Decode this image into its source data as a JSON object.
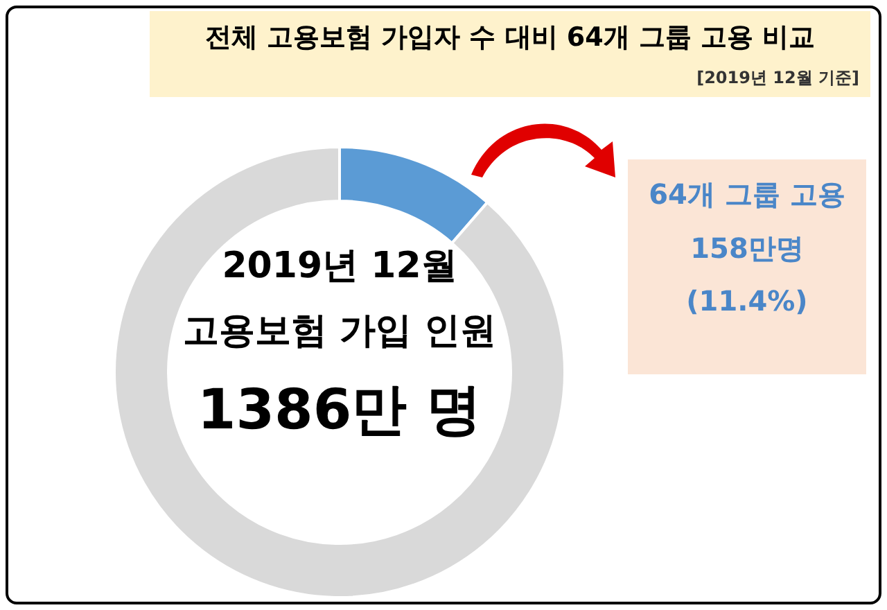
{
  "chart_data": {
    "type": "donut",
    "title": "전체 고용보험 가입자 수 대비 64개 그룹 고용 비교",
    "categories": [
      null,
      null
    ],
    "values": [
      11.4,
      88.6
    ],
    "colors": [
      "#5b9bd5",
      "#d9d9d9"
    ],
    "annotations": [
      "[2019년 12월 기준]",
      "2019년 12월",
      "고용보험 가입 인원",
      "1386만 명",
      "64개 그룹 고용",
      "158만명",
      "(11.4%)"
    ],
    "legend": false
  }
}
